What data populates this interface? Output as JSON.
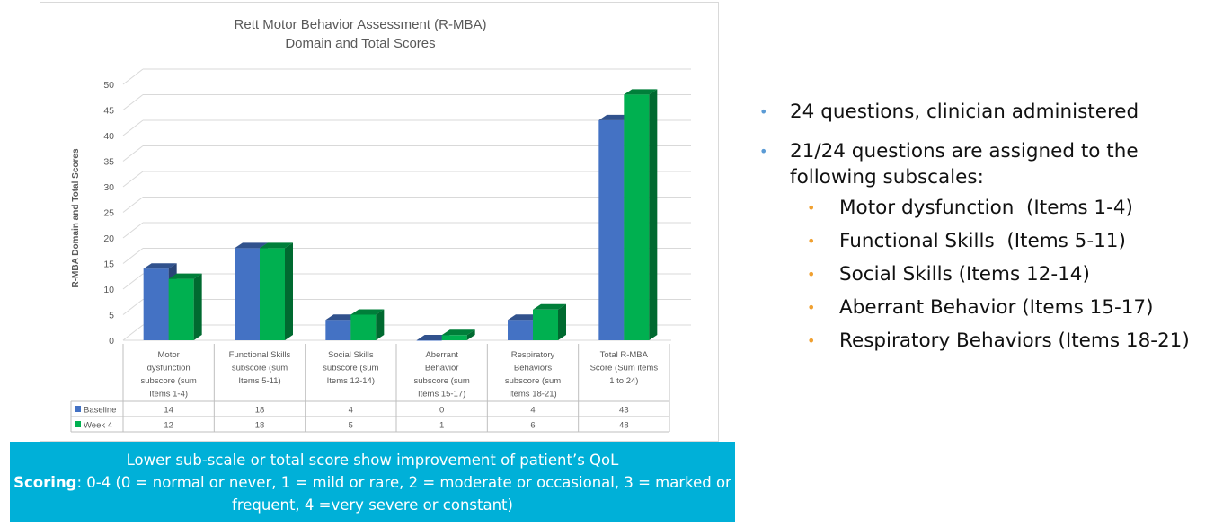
{
  "chart_data": {
    "type": "bar",
    "title": "Rett Motor Behavior Assessment (R-MBA)",
    "subtitle": "Domain and Total Scores",
    "ylabel": "R-MBA Domain and Total Scores",
    "xlabel": "",
    "ylim": [
      0,
      50
    ],
    "yticks": [
      0,
      5,
      10,
      15,
      20,
      25,
      30,
      35,
      40,
      45,
      50
    ],
    "grid": true,
    "legend": "data-table",
    "categories": [
      [
        "Motor",
        "dysfunction",
        "subscore (sum",
        "Items 1-4)"
      ],
      [
        "Functional Skills",
        "subscore (sum",
        "Items 5-11)"
      ],
      [
        "Social Skills",
        "subscore (sum",
        "Items 12-14)"
      ],
      [
        "Aberrant",
        "Behavior",
        "subscore (sum",
        "Items 15-17)"
      ],
      [
        "Respiratory",
        "Behaviors",
        "subscore (sum",
        "Items 18-21)"
      ],
      [
        "Total R-MBA",
        "Score (Sum items",
        "1 to 24)"
      ]
    ],
    "series": [
      {
        "name": "Baseline",
        "color": "#4472c4",
        "values": [
          14,
          18,
          4,
          0,
          4,
          43
        ]
      },
      {
        "name": "Week 4",
        "color": "#00b050",
        "values": [
          12,
          18,
          5,
          1,
          6,
          48
        ]
      }
    ]
  },
  "bullets": {
    "items": [
      {
        "text": "24 questions, clinician administered"
      },
      {
        "text": "21/24 questions are assigned to the following subscales:"
      }
    ],
    "subitems": [
      {
        "text": "Motor dysfunction  (Items 1-4)"
      },
      {
        "text": "Functional Skills  (Items 5-11)"
      },
      {
        "text": "Social Skills (Items 12-14)"
      },
      {
        "text": "Aberrant Behavior (Items 15-17)"
      },
      {
        "text": "Respiratory Behaviors (Items 18-21)"
      }
    ]
  },
  "info_box": {
    "line1": "Lower sub-scale or total score show improvement of patient’s QoL",
    "scoring_label": "Scoring",
    "scoring_text": ": 0-4 (0 = normal or never, 1 = mild or rare, 2 = moderate or occasional, 3 = marked or frequent, 4 =very severe or constant)"
  }
}
